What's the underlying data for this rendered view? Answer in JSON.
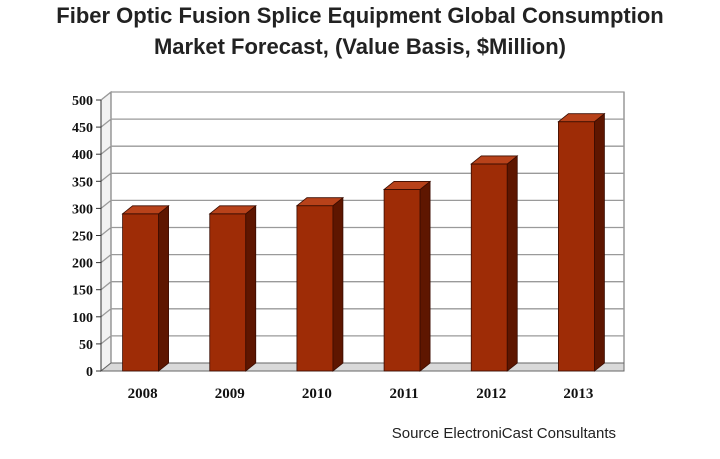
{
  "title_lines": [
    "Fiber Optic Fusion Splice Equipment Global Consumption",
    "Market Forecast, (Value Basis, $Million)"
  ],
  "source": "Source ElectroniCast Consultants",
  "colors": {
    "bar_front": "#9e2c06",
    "bar_side": "#5e1600",
    "bar_top": "#b8421a",
    "grid": "#9a9a9a",
    "wall": "#ffffff"
  },
  "chart_data": {
    "type": "bar",
    "title": "Fiber Optic Fusion Splice Equipment Global Consumption Market Forecast, (Value Basis, $Million)",
    "categories": [
      "2008",
      "2009",
      "2010",
      "2011",
      "2012",
      "2013"
    ],
    "values": [
      290,
      290,
      305,
      335,
      382,
      460
    ],
    "xlabel": "",
    "ylabel": "",
    "ylim": [
      0,
      500
    ],
    "yticks": [
      "0",
      "50",
      "100",
      "150",
      "200",
      "250",
      "300",
      "350",
      "400",
      "450",
      "500"
    ],
    "grid": true,
    "legend": "none",
    "style": "3d-column"
  }
}
